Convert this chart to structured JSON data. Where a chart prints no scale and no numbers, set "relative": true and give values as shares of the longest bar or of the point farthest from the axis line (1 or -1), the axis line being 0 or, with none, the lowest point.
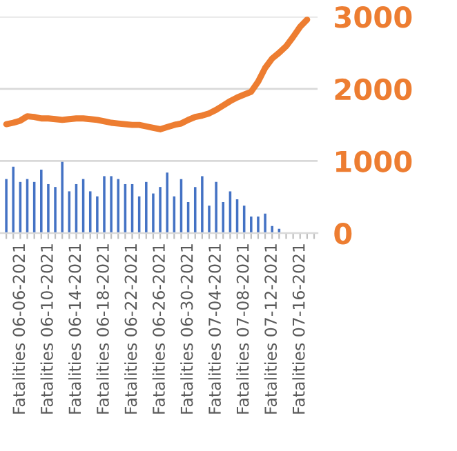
{
  "chart_data": [
    {
      "type": "bar",
      "relative": true,
      "categories": [
        null,
        null,
        "Fatalities 06-06-2021",
        null,
        null,
        null,
        "Fatalities 06-10-2021",
        null,
        null,
        null,
        "Fatalities 06-14-2021",
        null,
        null,
        null,
        "Fatalities 06-18-2021",
        null,
        null,
        null,
        "Fatalities 06-22-2021",
        null,
        null,
        null,
        "Fatalities 06-26-2021",
        null,
        null,
        null,
        "Fatalities 06-30-2021",
        null,
        null,
        null,
        "Fatalities 07-04-2021",
        null,
        null,
        null,
        "Fatalities 07-08-2021",
        null,
        null,
        null,
        "Fatalities 07-12-2021",
        null,
        null,
        null,
        "Fatalities 07-16-2021",
        null,
        null
      ],
      "series": [
        {
          "color": "#4472c4",
          "values": [
            0.75,
            0.92,
            0.71,
            0.75,
            0.71,
            0.88,
            0.68,
            0.64,
            1,
            0.58,
            0.68,
            0.75,
            0.58,
            0.51,
            0.79,
            0.79,
            0.75,
            0.68,
            0.68,
            0.51,
            0.71,
            0.55,
            0.64,
            0.84,
            0.51,
            0.75,
            0.43,
            0.64,
            0.79,
            0.38,
            0.71,
            0.43,
            0.58,
            0.47,
            0.38,
            0.23,
            0.23,
            0.27,
            0.1,
            0.06,
            0,
            0,
            0,
            0,
            0
          ]
        }
      ]
    },
    {
      "type": "line",
      "grid": "y",
      "tick_labels": "y",
      "categories": [
        null,
        null,
        null,
        null,
        null,
        null,
        null,
        null,
        null,
        null,
        null,
        null,
        null,
        null,
        null,
        null,
        null,
        null,
        null,
        null,
        null,
        null,
        null,
        null,
        null,
        null,
        null,
        null,
        null,
        null,
        null,
        null,
        null,
        null,
        null,
        null,
        null,
        null,
        null,
        null,
        null,
        null,
        null,
        null,
        null
      ],
      "series": [
        {
          "color": "#ed7d31",
          "values": [
            1510,
            1530,
            1560,
            1620,
            1610,
            1590,
            1590,
            1580,
            1570,
            1580,
            1590,
            1590,
            1580,
            1570,
            1550,
            1530,
            1520,
            1510,
            1500,
            1500,
            1480,
            1460,
            1440,
            1470,
            1500,
            1520,
            1570,
            1610,
            1630,
            1660,
            1710,
            1770,
            1830,
            1880,
            1920,
            1960,
            2100,
            2290,
            2420,
            2500,
            2590,
            2720,
            2860,
            2960,
            null
          ]
        }
      ],
      "ylim": [
        0,
        3000
      ],
      "yticks": [
        0,
        1000,
        2000,
        3000
      ]
    }
  ]
}
